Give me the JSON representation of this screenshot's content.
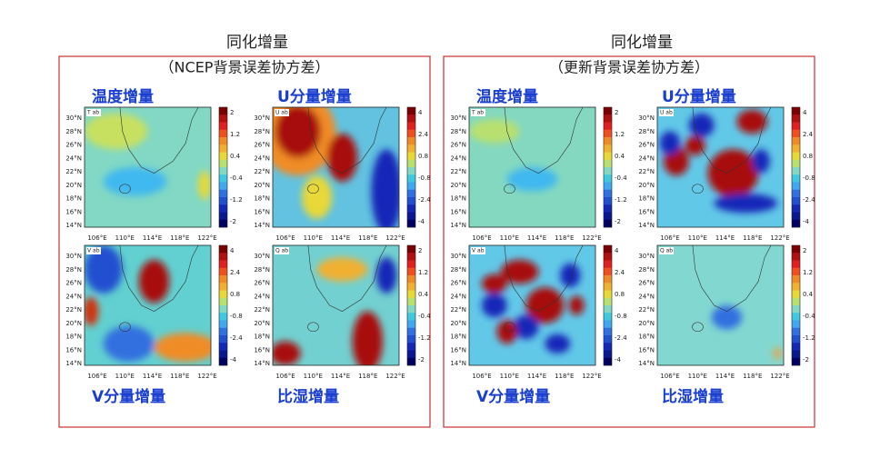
{
  "lat_ticks": [
    "30°N",
    "28°N",
    "26°N",
    "24°N",
    "22°N",
    "20°N",
    "18°N",
    "16°N",
    "14°N"
  ],
  "lon_ticks": [
    "106°E",
    "110°E",
    "114°E",
    "118°E",
    "122°E"
  ],
  "panels": [
    {
      "title": "同化增量",
      "subtitle": "（NCEP背景误差协方差）",
      "maps": [
        {
          "label": "温度增量",
          "tag": "T ab",
          "colorbar_ticks": [
            "2",
            "1.2",
            "0.4",
            "-0.4",
            "-1.2",
            "-2"
          ]
        },
        {
          "label": "U分量增量",
          "tag": "U ab",
          "colorbar_ticks": [
            "4",
            "2.4",
            "0.8",
            "-0.8",
            "-2.4",
            "-4"
          ]
        },
        {
          "label": "V分量增量",
          "tag": "V ab",
          "colorbar_ticks": [
            "4",
            "2.4",
            "0.8",
            "-0.8",
            "-2.4",
            "-4"
          ]
        },
        {
          "label": "比湿增量",
          "tag": "Q ab",
          "colorbar_ticks": [
            "2",
            "1.2",
            "0.4",
            "-0.4",
            "-1.2",
            "-2"
          ]
        }
      ]
    },
    {
      "title": "同化增量",
      "subtitle": "（更新背景误差协方差）",
      "maps": [
        {
          "label": "温度增量",
          "tag": "T ab",
          "colorbar_ticks": [
            "2",
            "1.2",
            "0.4",
            "-0.4",
            "-1.2",
            "-2"
          ]
        },
        {
          "label": "U分量增量",
          "tag": "U ab",
          "colorbar_ticks": [
            "4",
            "2.4",
            "0.8",
            "-0.8",
            "-2.4",
            "-4"
          ]
        },
        {
          "label": "V分量增量",
          "tag": "V ab",
          "colorbar_ticks": [
            "4",
            "2.4",
            "0.8",
            "-0.8",
            "-2.4",
            "-4"
          ]
        },
        {
          "label": "比湿增量",
          "tag": "Q ab",
          "colorbar_ticks": [
            "2",
            "1.2",
            "0.4",
            "-0.4",
            "-1.2",
            "-2"
          ]
        }
      ]
    }
  ]
}
